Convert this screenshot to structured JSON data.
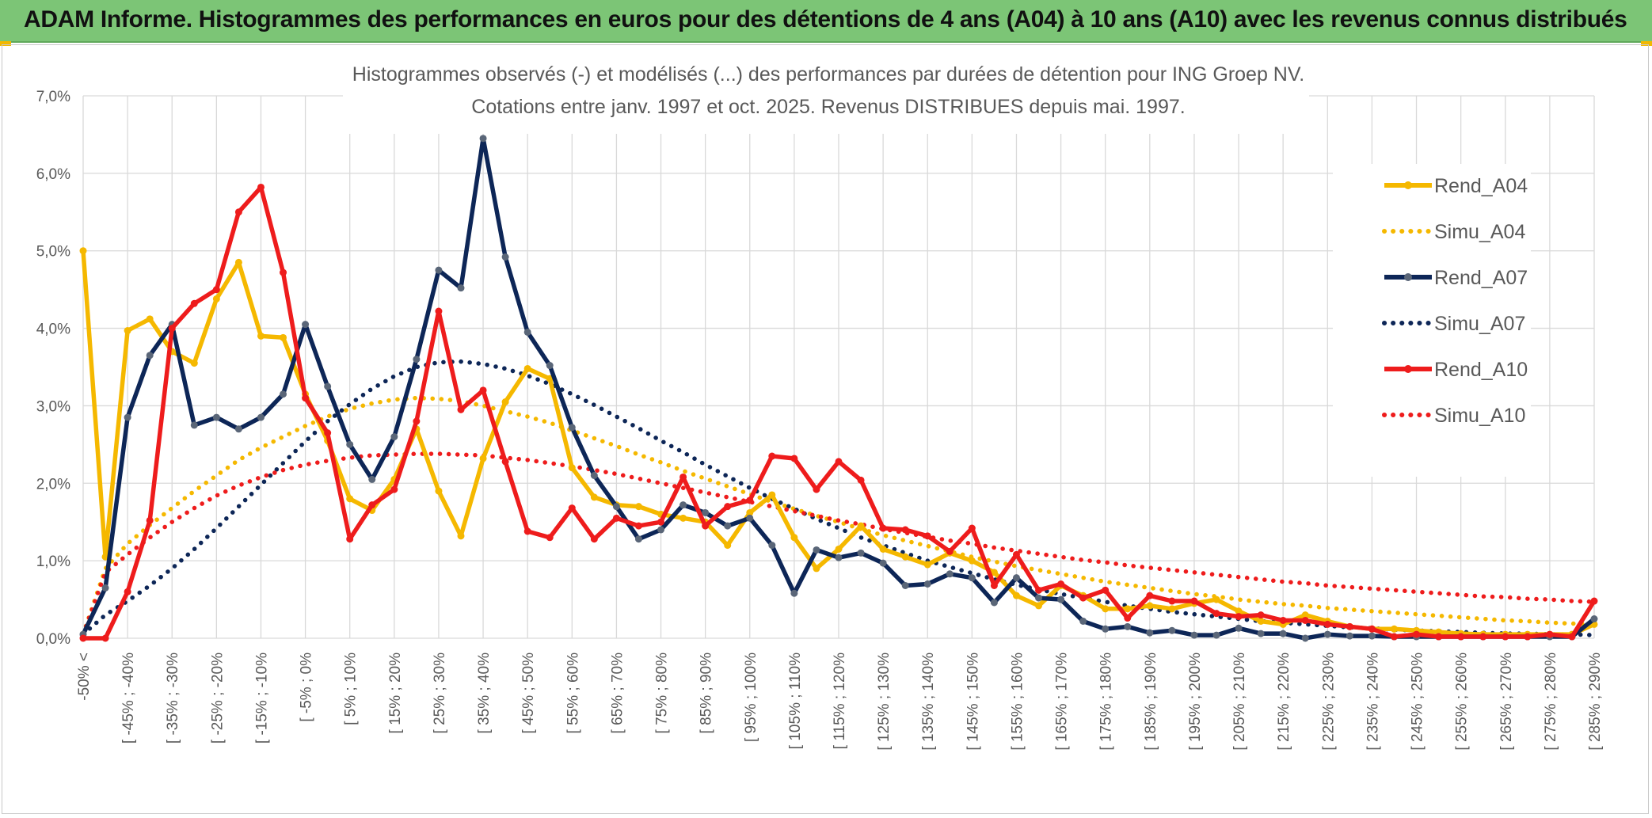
{
  "header": {
    "title": "ADAM Informe. Histogrammes des performances en euros pour des détentions de 4 ans (A04) à 10 ans (A10) avec les revenus connus distribués"
  },
  "chart_data": {
    "type": "line",
    "title_lines": [
      "Histogrammes observés (-) et modélisés (...) des performances par durées de détention pour ING Groep NV.",
      "Cotations entre janv. 1997 et oct. 2025. Revenus DISTRIBUES depuis mai. 1997."
    ],
    "xlabel": "",
    "ylabel": "",
    "ylim": [
      0,
      7
    ],
    "y_ticks": [
      "0,0%",
      "1,0%",
      "2,0%",
      "3,0%",
      "4,0%",
      "5,0%",
      "6,0%",
      "7,0%"
    ],
    "grid": true,
    "legend_position": "right",
    "x_tick_labels": [
      "-50% <",
      "[ -45% ; -40%",
      "[ -35% ; -30%",
      "[ -25% ; -20%",
      "[ -15% ; -10%",
      "[ -5% ; 0%",
      "[ 5% ; 10%",
      "[ 15% ; 20%",
      "[ 25% ; 30%",
      "[ 35% ; 40%",
      "[ 45% ; 50%",
      "[ 55% ; 60%",
      "[ 65% ; 70%",
      "[ 75% ; 80%",
      "[ 85% ; 90%",
      "[ 95% ; 100%",
      "[ 105% ; 110%",
      "[ 115% ; 120%",
      "[ 125% ; 130%",
      "[ 135% ; 140%",
      "[ 145% ; 150%",
      "[ 155% ; 160%",
      "[ 165% ; 170%",
      "[ 175% ; 180%",
      "[ 185% ; 190%",
      "[ 195% ; 200%",
      "[ 205% ; 210%",
      "[ 215% ; 220%",
      "[ 225% ; 230%",
      "[ 235% ; 240%",
      "[ 245% ; 250%",
      "[ 255% ; 260%",
      "[ 265% ; 270%",
      "[ 275% ; 280%",
      "[ 285% ; 290%"
    ],
    "point_count": 69,
    "series": [
      {
        "name": "Rend_A04",
        "style": "solid",
        "color": "#f5b800",
        "values": [
          5.0,
          1.05,
          3.97,
          4.12,
          3.7,
          3.55,
          4.38,
          4.85,
          3.9,
          3.88,
          3.15,
          2.55,
          1.8,
          1.65,
          2.05,
          2.7,
          1.9,
          1.32,
          2.32,
          3.05,
          3.48,
          3.35,
          2.2,
          1.82,
          1.72,
          1.7,
          1.6,
          1.55,
          1.5,
          1.2,
          1.62,
          1.85,
          1.3,
          0.9,
          1.15,
          1.45,
          1.15,
          1.05,
          0.95,
          1.1,
          1.0,
          0.85,
          0.55,
          0.42,
          0.68,
          0.55,
          0.38,
          0.38,
          0.42,
          0.38,
          0.45,
          0.5,
          0.35,
          0.22,
          0.18,
          0.3,
          0.22,
          0.15,
          0.12,
          0.12,
          0.1,
          0.08,
          0.06,
          0.05,
          0.05,
          0.05,
          0.05,
          0.05,
          0.18
        ]
      },
      {
        "name": "Simu_A04",
        "style": "dotted",
        "color": "#f5b800",
        "values": [
          0.05,
          0.9,
          1.22,
          1.46,
          1.68,
          1.9,
          2.1,
          2.3,
          2.46,
          2.6,
          2.74,
          2.86,
          2.96,
          3.03,
          3.08,
          3.1,
          3.09,
          3.06,
          3.0,
          2.93,
          2.86,
          2.78,
          2.68,
          2.58,
          2.48,
          2.37,
          2.27,
          2.16,
          2.06,
          1.96,
          1.86,
          1.76,
          1.67,
          1.58,
          1.5,
          1.41,
          1.33,
          1.26,
          1.19,
          1.12,
          1.05,
          0.99,
          0.93,
          0.88,
          0.83,
          0.78,
          0.73,
          0.69,
          0.65,
          0.61,
          0.57,
          0.54,
          0.5,
          0.47,
          0.44,
          0.42,
          0.39,
          0.37,
          0.35,
          0.33,
          0.31,
          0.29,
          0.27,
          0.25,
          0.23,
          0.22,
          0.2,
          0.19,
          0.18
        ]
      },
      {
        "name": "Rend_A07",
        "style": "solid",
        "color": "#0d2657",
        "values": [
          0.05,
          0.65,
          2.85,
          3.65,
          4.05,
          2.75,
          2.85,
          2.7,
          2.85,
          3.15,
          4.05,
          3.25,
          2.5,
          2.05,
          2.6,
          3.6,
          4.75,
          4.52,
          6.45,
          4.92,
          3.95,
          3.52,
          2.72,
          2.1,
          1.7,
          1.28,
          1.4,
          1.72,
          1.62,
          1.45,
          1.55,
          1.2,
          0.58,
          1.14,
          1.04,
          1.1,
          0.97,
          0.68,
          0.7,
          0.83,
          0.78,
          0.46,
          0.78,
          0.52,
          0.5,
          0.22,
          0.12,
          0.15,
          0.07,
          0.1,
          0.04,
          0.04,
          0.13,
          0.06,
          0.06,
          0.0,
          0.05,
          0.03,
          0.03,
          0.02,
          0.02,
          0.02,
          0.02,
          0.02,
          0.02,
          0.02,
          0.02,
          0.02,
          0.25
        ]
      },
      {
        "name": "Simu_A07",
        "style": "dotted",
        "color": "#0d2657",
        "values": [
          0.05,
          0.3,
          0.48,
          0.68,
          0.9,
          1.15,
          1.42,
          1.7,
          1.98,
          2.26,
          2.54,
          2.8,
          3.02,
          3.22,
          3.38,
          3.5,
          3.56,
          3.57,
          3.54,
          3.48,
          3.39,
          3.28,
          3.15,
          3.01,
          2.86,
          2.71,
          2.55,
          2.4,
          2.24,
          2.09,
          1.94,
          1.8,
          1.67,
          1.54,
          1.42,
          1.3,
          1.2,
          1.1,
          1.0,
          0.92,
          0.84,
          0.76,
          0.69,
          0.63,
          0.57,
          0.52,
          0.47,
          0.42,
          0.38,
          0.34,
          0.31,
          0.28,
          0.25,
          0.22,
          0.2,
          0.18,
          0.16,
          0.14,
          0.13,
          0.11,
          0.1,
          0.09,
          0.08,
          0.07,
          0.06,
          0.06,
          0.05,
          0.05,
          0.04
        ]
      },
      {
        "name": "Rend_A10",
        "style": "solid",
        "color": "#ee1c1c",
        "values": [
          0.0,
          0.0,
          0.6,
          1.52,
          4.0,
          4.32,
          4.5,
          5.5,
          5.82,
          4.72,
          3.1,
          2.65,
          1.28,
          1.72,
          1.92,
          2.8,
          4.22,
          2.95,
          3.2,
          2.28,
          1.38,
          1.3,
          1.68,
          1.28,
          1.55,
          1.45,
          1.5,
          2.08,
          1.45,
          1.7,
          1.78,
          2.35,
          2.32,
          1.92,
          2.28,
          2.04,
          1.42,
          1.4,
          1.32,
          1.12,
          1.42,
          0.68,
          1.08,
          0.62,
          0.7,
          0.52,
          0.62,
          0.26,
          0.55,
          0.48,
          0.48,
          0.32,
          0.28,
          0.3,
          0.23,
          0.23,
          0.18,
          0.15,
          0.12,
          0.02,
          0.05,
          0.02,
          0.02,
          0.02,
          0.02,
          0.02,
          0.05,
          0.02,
          0.48
        ]
      },
      {
        "name": "Simu_A10",
        "style": "dotted",
        "color": "#ee1c1c",
        "values": [
          0.05,
          0.85,
          1.08,
          1.3,
          1.5,
          1.68,
          1.84,
          1.97,
          2.08,
          2.17,
          2.24,
          2.29,
          2.33,
          2.36,
          2.37,
          2.38,
          2.38,
          2.37,
          2.36,
          2.33,
          2.3,
          2.26,
          2.22,
          2.17,
          2.12,
          2.06,
          2.0,
          1.94,
          1.88,
          1.82,
          1.76,
          1.7,
          1.64,
          1.58,
          1.52,
          1.47,
          1.41,
          1.36,
          1.31,
          1.26,
          1.22,
          1.17,
          1.13,
          1.09,
          1.05,
          1.01,
          0.98,
          0.94,
          0.91,
          0.88,
          0.85,
          0.82,
          0.79,
          0.76,
          0.73,
          0.71,
          0.68,
          0.66,
          0.64,
          0.62,
          0.6,
          0.58,
          0.56,
          0.54,
          0.53,
          0.51,
          0.5,
          0.48,
          0.47
        ]
      }
    ]
  }
}
